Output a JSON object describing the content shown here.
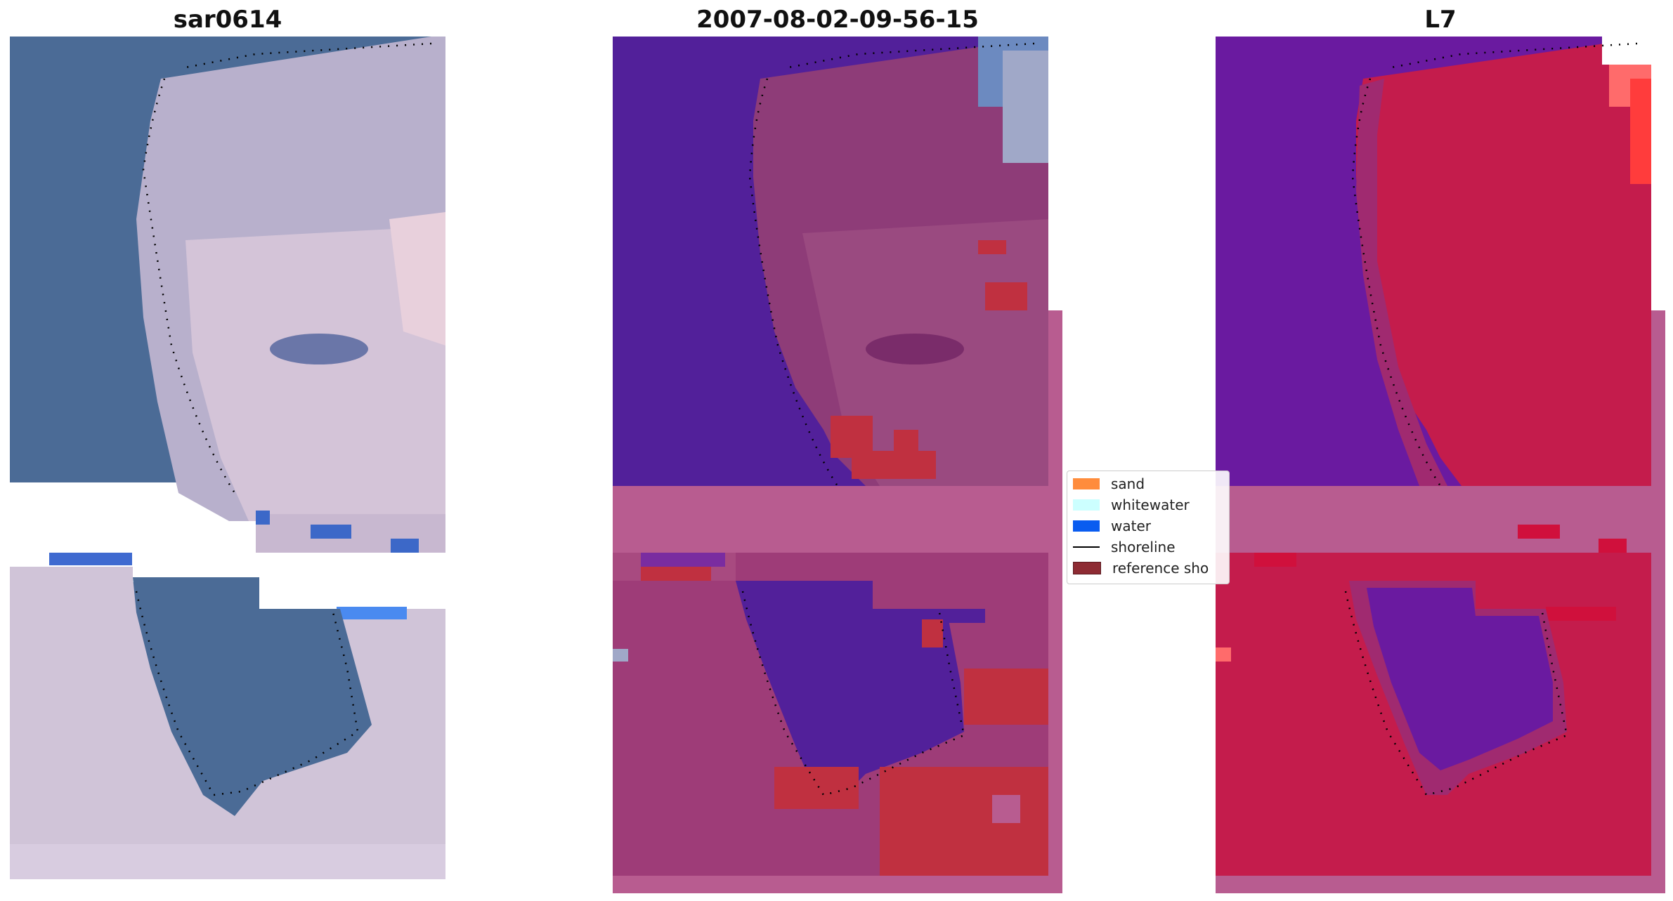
{
  "panels": {
    "left_title": "sar0614",
    "middle_title": "2007-08-02-09-56-15",
    "right_title": "L7"
  },
  "legend": {
    "items": [
      {
        "label": "sand",
        "color": "#ff8c3c"
      },
      {
        "label": "whitewater",
        "color": "#ccffff"
      },
      {
        "label": "water",
        "color": "#0a5cf0"
      },
      {
        "label": "shoreline",
        "color": "#000000"
      },
      {
        "label": "reference sho",
        "color": "#8e2b33"
      }
    ]
  },
  "colors": {
    "rgb_water": "#4a6a96",
    "rgb_sand": "#d8c8d8",
    "class_water": "#52209a",
    "class_sand": "#9e3c78",
    "class_highlight": "#c03040",
    "ndwi_land": "#c41c4c",
    "ndwi_water": "#6a1aa0",
    "nodata_band": "#b85c90"
  }
}
